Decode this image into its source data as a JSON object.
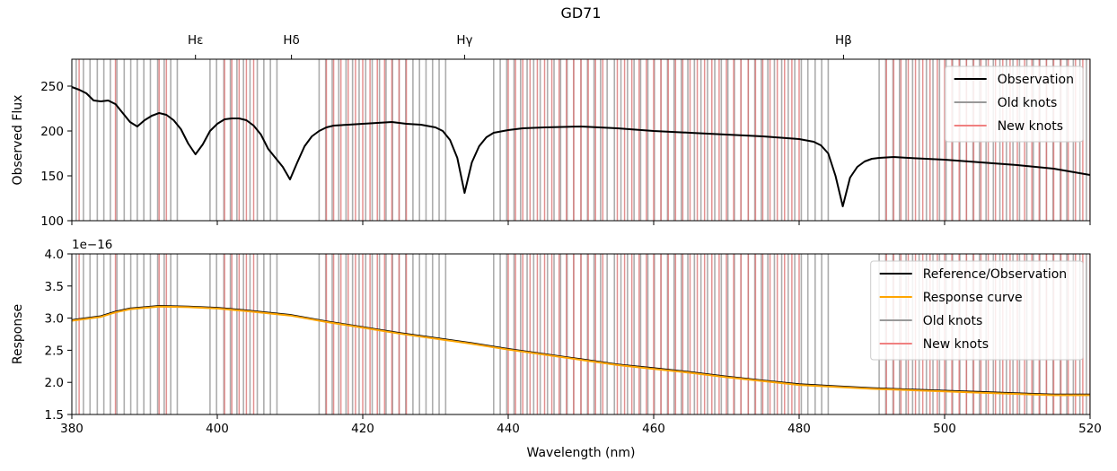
{
  "chart_data": {
    "type": "line",
    "title": "GD71",
    "colors": {
      "observation": "#000000",
      "response": "#ffa500",
      "old_knots": "#999999",
      "new_knots": "#f08080"
    },
    "xlim": [
      380,
      520
    ],
    "x_ticks": [
      380,
      400,
      420,
      440,
      460,
      480,
      500,
      520
    ],
    "xlabel": "Wavelength (nm)",
    "lines": {
      "labels": [
        "Hε",
        "Hδ",
        "Hγ",
        "Hβ"
      ],
      "wavelengths": [
        397.0,
        410.2,
        434.0,
        486.1
      ]
    },
    "old_knots": [
      380.6,
      381.6,
      382.5,
      383.5,
      384.4,
      385.3,
      386.2,
      387.2,
      388.1,
      389.0,
      389.9,
      390.8,
      391.8,
      392.7,
      393.6,
      394.5,
      399.0,
      399.9,
      400.9,
      401.8,
      402.7,
      403.6,
      404.5,
      405.5,
      406.4,
      407.3,
      408.2,
      414.0,
      414.9,
      415.8,
      416.7,
      417.7,
      418.6,
      419.5,
      420.4,
      421.3,
      422.3,
      423.2,
      424.1,
      425.0,
      425.9,
      426.9,
      427.8,
      428.7,
      429.6,
      430.5,
      431.4,
      438.0,
      438.9,
      439.8,
      440.8,
      441.7,
      442.6,
      443.5,
      444.4,
      445.4,
      446.3,
      447.2,
      448.1,
      449.0,
      450.0,
      450.9,
      451.8,
      452.7,
      453.6,
      454.6,
      455.5,
      456.4,
      457.3,
      458.2,
      459.2,
      460.1,
      461.0,
      461.9,
      462.8,
      463.8,
      464.7,
      465.6,
      466.5,
      467.4,
      468.4,
      469.3,
      470.2,
      471.1,
      472.0,
      473.0,
      473.9,
      474.8,
      475.7,
      476.6,
      477.6,
      478.5,
      479.4,
      480.3,
      481.2,
      482.2,
      483.1,
      484.0,
      491.0,
      491.9,
      492.9,
      493.8,
      494.7,
      495.6,
      496.5,
      497.5,
      498.4,
      499.3,
      500.2,
      501.1,
      502.1,
      503.0,
      503.9,
      504.8,
      505.7,
      506.7,
      507.6,
      508.5,
      509.4,
      510.3,
      511.3,
      512.2,
      513.1,
      514.0,
      514.9,
      515.9,
      516.8,
      517.7,
      518.6,
      519.5
    ],
    "new_knots": [
      381.0,
      386.0,
      392.0,
      393.0,
      401.0,
      402.0,
      403.0,
      404.0,
      405.0,
      415.0,
      416.0,
      417.0,
      418.0,
      419.0,
      420.0,
      421.0,
      422.0,
      423.0,
      424.0,
      425.0,
      426.0,
      440.0,
      441.0,
      442.0,
      443.0,
      444.0,
      445.0,
      446.0,
      447.0,
      448.0,
      449.0,
      450.0,
      451.0,
      452.0,
      453.0,
      455.0,
      456.0,
      457.0,
      458.0,
      459.0,
      460.0,
      461.0,
      462.0,
      463.0,
      464.0,
      465.0,
      466.0,
      467.0,
      468.0,
      469.0,
      470.0,
      471.0,
      472.0,
      473.0,
      474.0,
      475.0,
      476.0,
      477.0,
      478.0,
      479.0,
      480.0,
      492.0,
      493.0,
      494.0,
      495.0,
      496.0,
      497.0,
      498.0,
      499.0,
      500.0,
      501.0,
      502.0,
      503.0,
      504.0,
      505.0,
      506.0,
      507.0,
      508.0,
      509.0,
      510.0,
      511.0,
      512.0,
      513.0,
      514.0,
      515.0,
      516.0,
      517.0,
      518.0,
      519.0,
      520.0
    ],
    "panels": [
      {
        "ylabel": "Observed Flux",
        "ylim": [
          100,
          280
        ],
        "y_ticks": [
          100,
          150,
          200,
          250
        ],
        "legend_position": "top-right",
        "legend": [
          "Observation",
          "Old knots",
          "New knots"
        ],
        "series": [
          {
            "name": "Observation",
            "x": [
              380,
              381,
              382,
              383,
              384,
              385,
              386,
              387,
              388,
              389,
              390,
              391,
              392,
              393,
              394,
              395,
              396,
              397,
              398,
              399,
              400,
              401,
              402,
              403,
              404,
              405,
              406,
              407,
              408,
              409,
              410,
              411,
              412,
              413,
              414,
              415,
              416,
              418,
              420,
              422,
              424,
              426,
              428,
              430,
              431,
              432,
              433,
              434,
              435,
              436,
              437,
              438,
              440,
              442,
              445,
              450,
              455,
              460,
              465,
              470,
              475,
              480,
              482,
              483,
              484,
              485,
              486,
              487,
              488,
              489,
              490,
              491,
              493,
              495,
              500,
              505,
              510,
              515,
              520
            ],
            "y": [
              249,
              246,
              242,
              234,
              233,
              234,
              230,
              220,
              210,
              205,
              212,
              217,
              220,
              218,
              212,
              202,
              186,
              174,
              185,
              200,
              208,
              213,
              214,
              214,
              212,
              206,
              196,
              180,
              170,
              160,
              146,
              165,
              183,
              194,
              200,
              204,
              206,
              207,
              208,
              209,
              210,
              208,
              207,
              204,
              200,
              190,
              170,
              131,
              165,
              183,
              193,
              198,
              201,
              203,
              204,
              205,
              203,
              200,
              198,
              196,
              194,
              191,
              188,
              184,
              175,
              150,
              116,
              148,
              160,
              166,
              169,
              170,
              171,
              170,
              168,
              165,
              162,
              158,
              151
            ]
          }
        ]
      },
      {
        "ylabel": "Response",
        "ylim": [
          1.5,
          4.0
        ],
        "y_ticks": [
          1.5,
          2.0,
          2.5,
          3.0,
          3.5,
          4.0
        ],
        "y_tick_labels": [
          "1.5",
          "2.0",
          "2.5",
          "3.0",
          "3.5",
          "4.0"
        ],
        "exponent_label": "1e−16",
        "legend_position": "top-right",
        "legend": [
          "Reference/Observation",
          "Response curve",
          "Old knots",
          "New knots"
        ],
        "series": [
          {
            "name": "Reference/Observation",
            "x": [
              380,
              384,
              386,
              388,
              392,
              396,
              400,
              404,
              410,
              415,
              420,
              425,
              430,
              435,
              440,
              445,
              450,
              455,
              460,
              465,
              470,
              475,
              480,
              485,
              490,
              495,
              500,
              505,
              510,
              515,
              520
            ],
            "y": [
              2.97,
              3.03,
              3.1,
              3.15,
              3.19,
              3.18,
              3.16,
              3.12,
              3.05,
              2.95,
              2.86,
              2.77,
              2.69,
              2.61,
              2.52,
              2.44,
              2.36,
              2.28,
              2.22,
              2.16,
              2.09,
              2.03,
              1.97,
              1.94,
              1.91,
              1.89,
              1.87,
              1.85,
              1.83,
              1.81,
              1.81
            ]
          },
          {
            "name": "Response curve",
            "x": [
              380,
              384,
              386,
              388,
              392,
              396,
              400,
              404,
              410,
              415,
              420,
              425,
              430,
              435,
              440,
              445,
              450,
              455,
              460,
              465,
              470,
              475,
              480,
              485,
              490,
              495,
              500,
              505,
              510,
              515,
              520
            ],
            "y": [
              2.96,
              3.02,
              3.09,
              3.14,
              3.18,
              3.17,
              3.15,
              3.11,
              3.04,
              2.94,
              2.85,
              2.76,
              2.68,
              2.6,
              2.51,
              2.43,
              2.35,
              2.27,
              2.21,
              2.15,
              2.08,
              2.02,
              1.96,
              1.93,
              1.9,
              1.88,
              1.86,
              1.84,
              1.82,
              1.8,
              1.8
            ]
          }
        ]
      }
    ]
  }
}
